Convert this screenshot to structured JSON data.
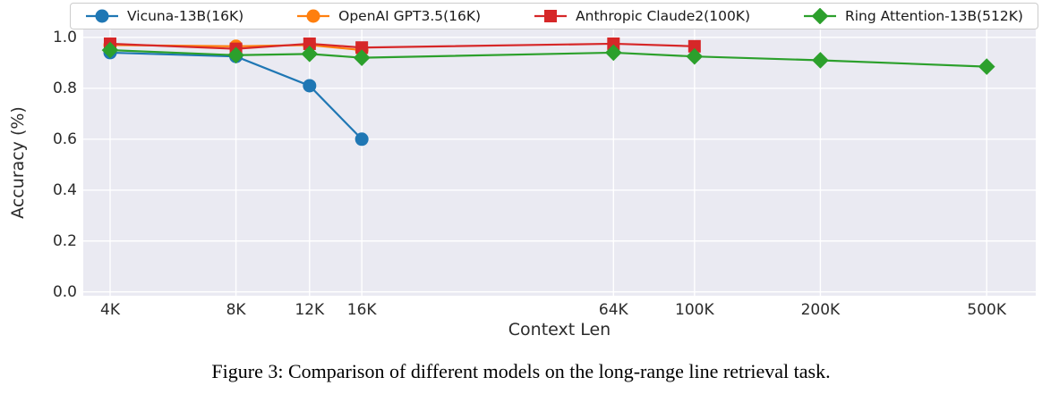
{
  "figure": {
    "caption": "Figure 3: Comparison of different models on the long-range line retrieval task."
  },
  "chart_data": {
    "type": "line",
    "title": "",
    "xlabel": "Context Len",
    "ylabel": "Accuracy (%)",
    "x_scale": "log",
    "x_unit": "K tokens",
    "xlim": [
      3.45,
      655
    ],
    "ylim": [
      -0.015,
      1.031
    ],
    "grid": true,
    "legend_position": "top-horizontal",
    "plot_background": "#eaeaf2",
    "grid_color": "#ffffff",
    "tick_color": "#2b2b2b",
    "xticks": [
      {
        "value": 4,
        "label": "4K"
      },
      {
        "value": 8,
        "label": "8K"
      },
      {
        "value": 12,
        "label": "12K"
      },
      {
        "value": 16,
        "label": "16K"
      },
      {
        "value": 64,
        "label": "64K"
      },
      {
        "value": 100,
        "label": "100K"
      },
      {
        "value": 200,
        "label": "200K"
      },
      {
        "value": 500,
        "label": "500K"
      }
    ],
    "yticks": [
      {
        "value": 0.0,
        "label": "0.0"
      },
      {
        "value": 0.2,
        "label": "0.2"
      },
      {
        "value": 0.4,
        "label": "0.4"
      },
      {
        "value": 0.6,
        "label": "0.6"
      },
      {
        "value": 0.8,
        "label": "0.8"
      },
      {
        "value": 1.0,
        "label": "1.0"
      }
    ],
    "series": [
      {
        "name": "Vicuna-13B(16K)",
        "color": "#1f77b4",
        "marker": "circle",
        "x": [
          4,
          8,
          12,
          16
        ],
        "y": [
          0.94,
          0.925,
          0.81,
          0.6
        ]
      },
      {
        "name": "OpenAI GPT3.5(16K)",
        "color": "#ff7f0e",
        "marker": "circle",
        "x": [
          4,
          8,
          12,
          16
        ],
        "y": [
          0.97,
          0.965,
          0.97,
          0.95
        ]
      },
      {
        "name": "Anthropic Claude2(100K)",
        "color": "#d62728",
        "marker": "square",
        "x": [
          4,
          8,
          12,
          16,
          64,
          100
        ],
        "y": [
          0.975,
          0.955,
          0.975,
          0.96,
          0.975,
          0.965
        ]
      },
      {
        "name": "Ring Attention-13B(512K)",
        "color": "#2ca02c",
        "marker": "diamond",
        "x": [
          4,
          8,
          12,
          16,
          64,
          100,
          200,
          500
        ],
        "y": [
          0.95,
          0.93,
          0.935,
          0.92,
          0.94,
          0.925,
          0.91,
          0.885
        ]
      }
    ]
  }
}
